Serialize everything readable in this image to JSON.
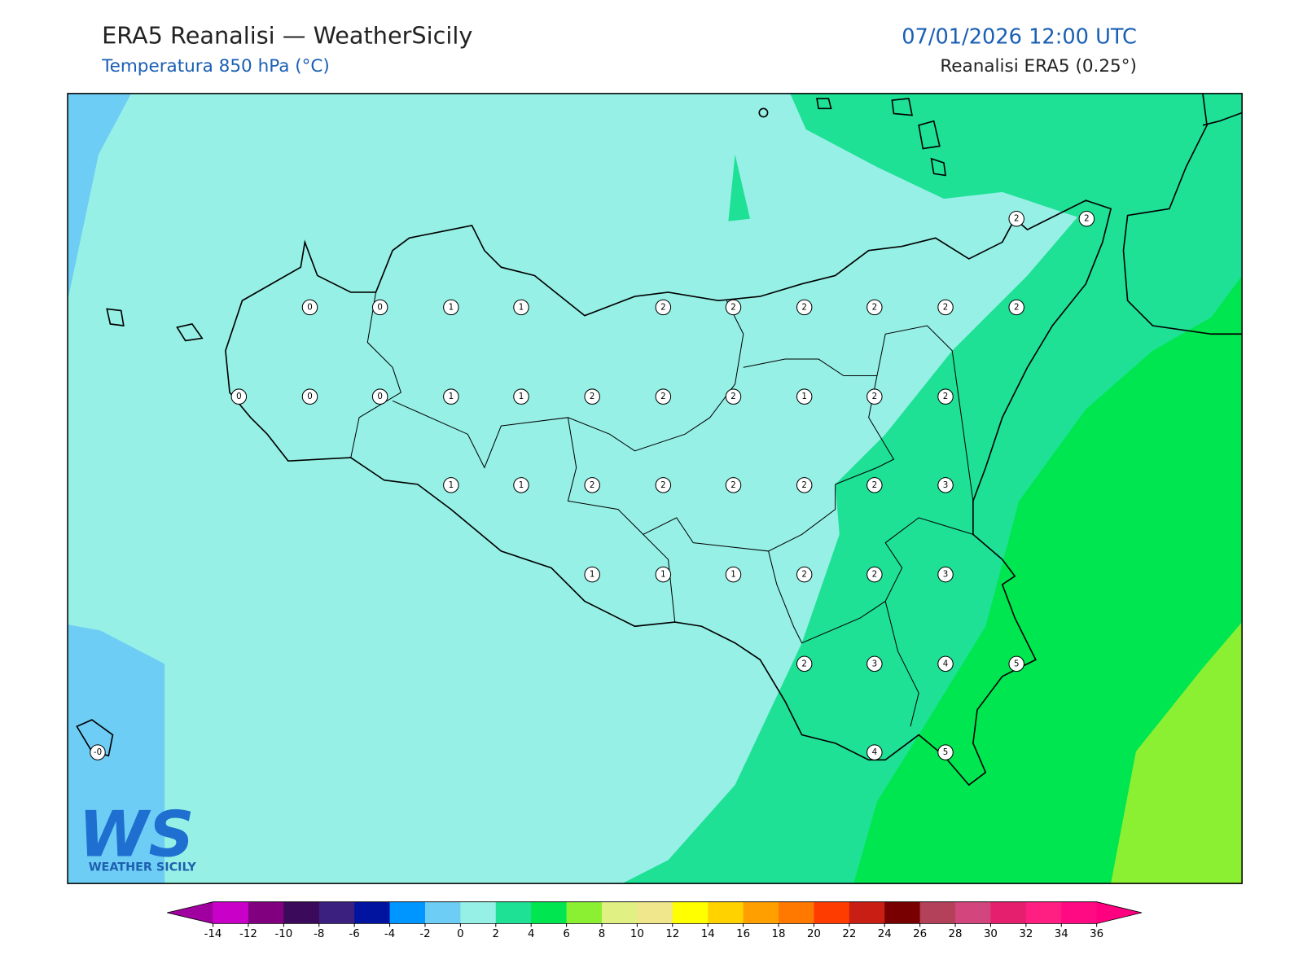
{
  "header": {
    "title": "ERA5 Reanalisi — WeatherSicily",
    "subtitle": "Temperatura 850 hPa (°C)",
    "datetime": "07/01/2026 12:00 UTC",
    "source": "Reanalisi ERA5 (0.25°)"
  },
  "logo": {
    "mark": "WS",
    "text": "WEATHER SICILY"
  },
  "stations": [
    "2",
    "2",
    "0",
    "0",
    "1",
    "1",
    "2",
    "2",
    "2",
    "2",
    "2",
    "2",
    "0",
    "0",
    "0",
    "1",
    "1",
    "2",
    "2",
    "2",
    "1",
    "2",
    "2",
    "1",
    "1",
    "2",
    "2",
    "2",
    "2",
    "2",
    "3",
    "1",
    "1",
    "1",
    "2",
    "2",
    "3",
    "2",
    "3",
    "4",
    "5",
    "-0",
    "4",
    "5"
  ],
  "colorbar": {
    "ticks": [
      -14,
      -12,
      -10,
      -8,
      -6,
      -4,
      -2,
      0,
      2,
      4,
      6,
      8,
      10,
      12,
      14,
      16,
      18,
      20,
      22,
      24,
      26,
      28,
      30,
      32,
      34,
      36
    ],
    "colors": [
      "#a000a0",
      "#c800c8",
      "#800080",
      "#3c0a5a",
      "#3c2080",
      "#0014a0",
      "#0096ff",
      "#6ecdf5",
      "#96f0e6",
      "#1ee196",
      "#00e650",
      "#8cf032",
      "#e1f082",
      "#f0e68c",
      "#ffff00",
      "#ffd200",
      "#ffa000",
      "#ff7800",
      "#ff3c00",
      "#c81e14",
      "#780000",
      "#b4415a",
      "#d2467d",
      "#e61e6e",
      "#ff1e82",
      "#ff0a82",
      "#ff0080"
    ]
  }
}
